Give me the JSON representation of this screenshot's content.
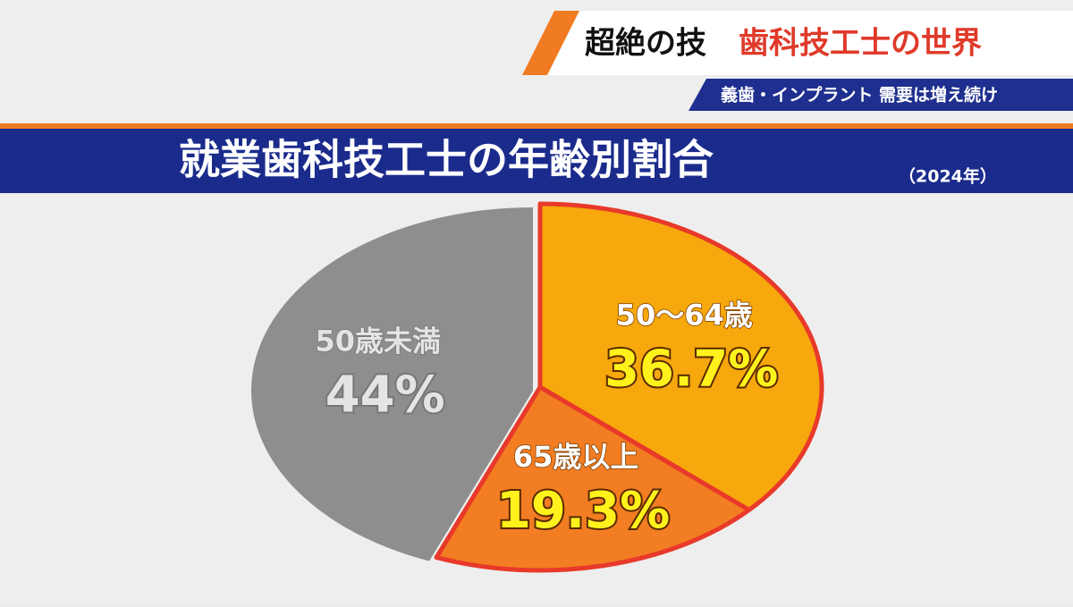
{
  "header": {
    "title_left": "超絶の技",
    "title_right": "歯科技工士の世界",
    "subtitle": "義歯・インプラント 需要は増え続け"
  },
  "chart_data": {
    "type": "pie",
    "title": "就業歯科技工士の年齢別割合",
    "subtitle": "（2024年）",
    "categories": [
      "50～64歳",
      "65歳以上",
      "50歳未満"
    ],
    "values": [
      36.7,
      19.3,
      44
    ],
    "value_labels": [
      "36.7%",
      "19.3%",
      "44%"
    ],
    "colors": [
      "#f6a80c",
      "#f27d22",
      "#8e8e8e"
    ]
  }
}
